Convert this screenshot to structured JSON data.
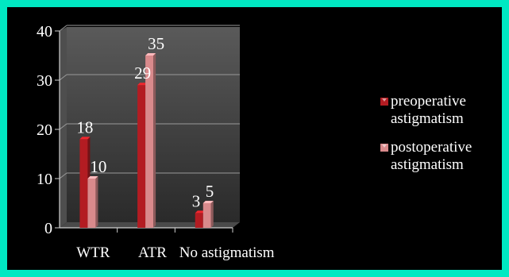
{
  "chart_data": {
    "type": "bar",
    "categories": [
      "WTR",
      "ATR",
      "No astigmatism"
    ],
    "series": [
      {
        "name": "preoperative astigmatism",
        "values": [
          18,
          29,
          3
        ],
        "color": "#b31c22"
      },
      {
        "name": "postoperative astigmatism",
        "values": [
          10,
          35,
          5
        ],
        "color": "#d98a8c"
      }
    ],
    "title": "",
    "xlabel": "",
    "ylabel": "",
    "ylim": [
      0,
      40
    ],
    "yticks": [
      0,
      10,
      20,
      30,
      40
    ],
    "grid": true,
    "legend": "right",
    "plot_background": "#3a3a3a",
    "frame_color": "#00e8c2"
  }
}
